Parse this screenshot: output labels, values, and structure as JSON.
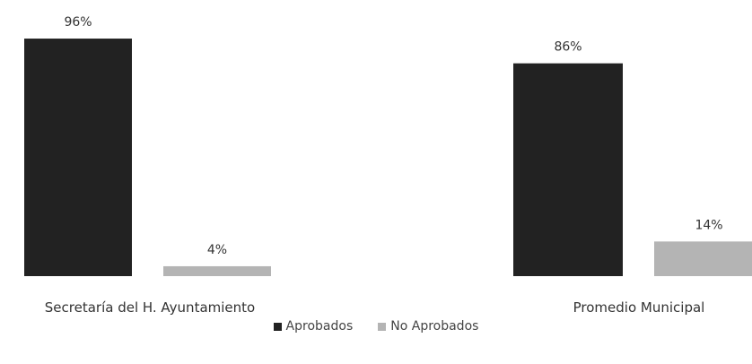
{
  "chart_data": {
    "type": "bar",
    "categories": [
      "Secretaría del H. Ayuntamiento",
      "Promedio Municipal"
    ],
    "series": [
      {
        "name": "Aprobados",
        "values": [
          96,
          86
        ],
        "labels": [
          "96%",
          "86%"
        ],
        "color": "#222222"
      },
      {
        "name": "No Aprobados",
        "values": [
          4,
          14
        ],
        "labels": [
          "4%",
          "14%"
        ],
        "color": "#b4b4b4"
      }
    ],
    "ylim": [
      0,
      100
    ],
    "grid": false,
    "legend": "bottom"
  }
}
